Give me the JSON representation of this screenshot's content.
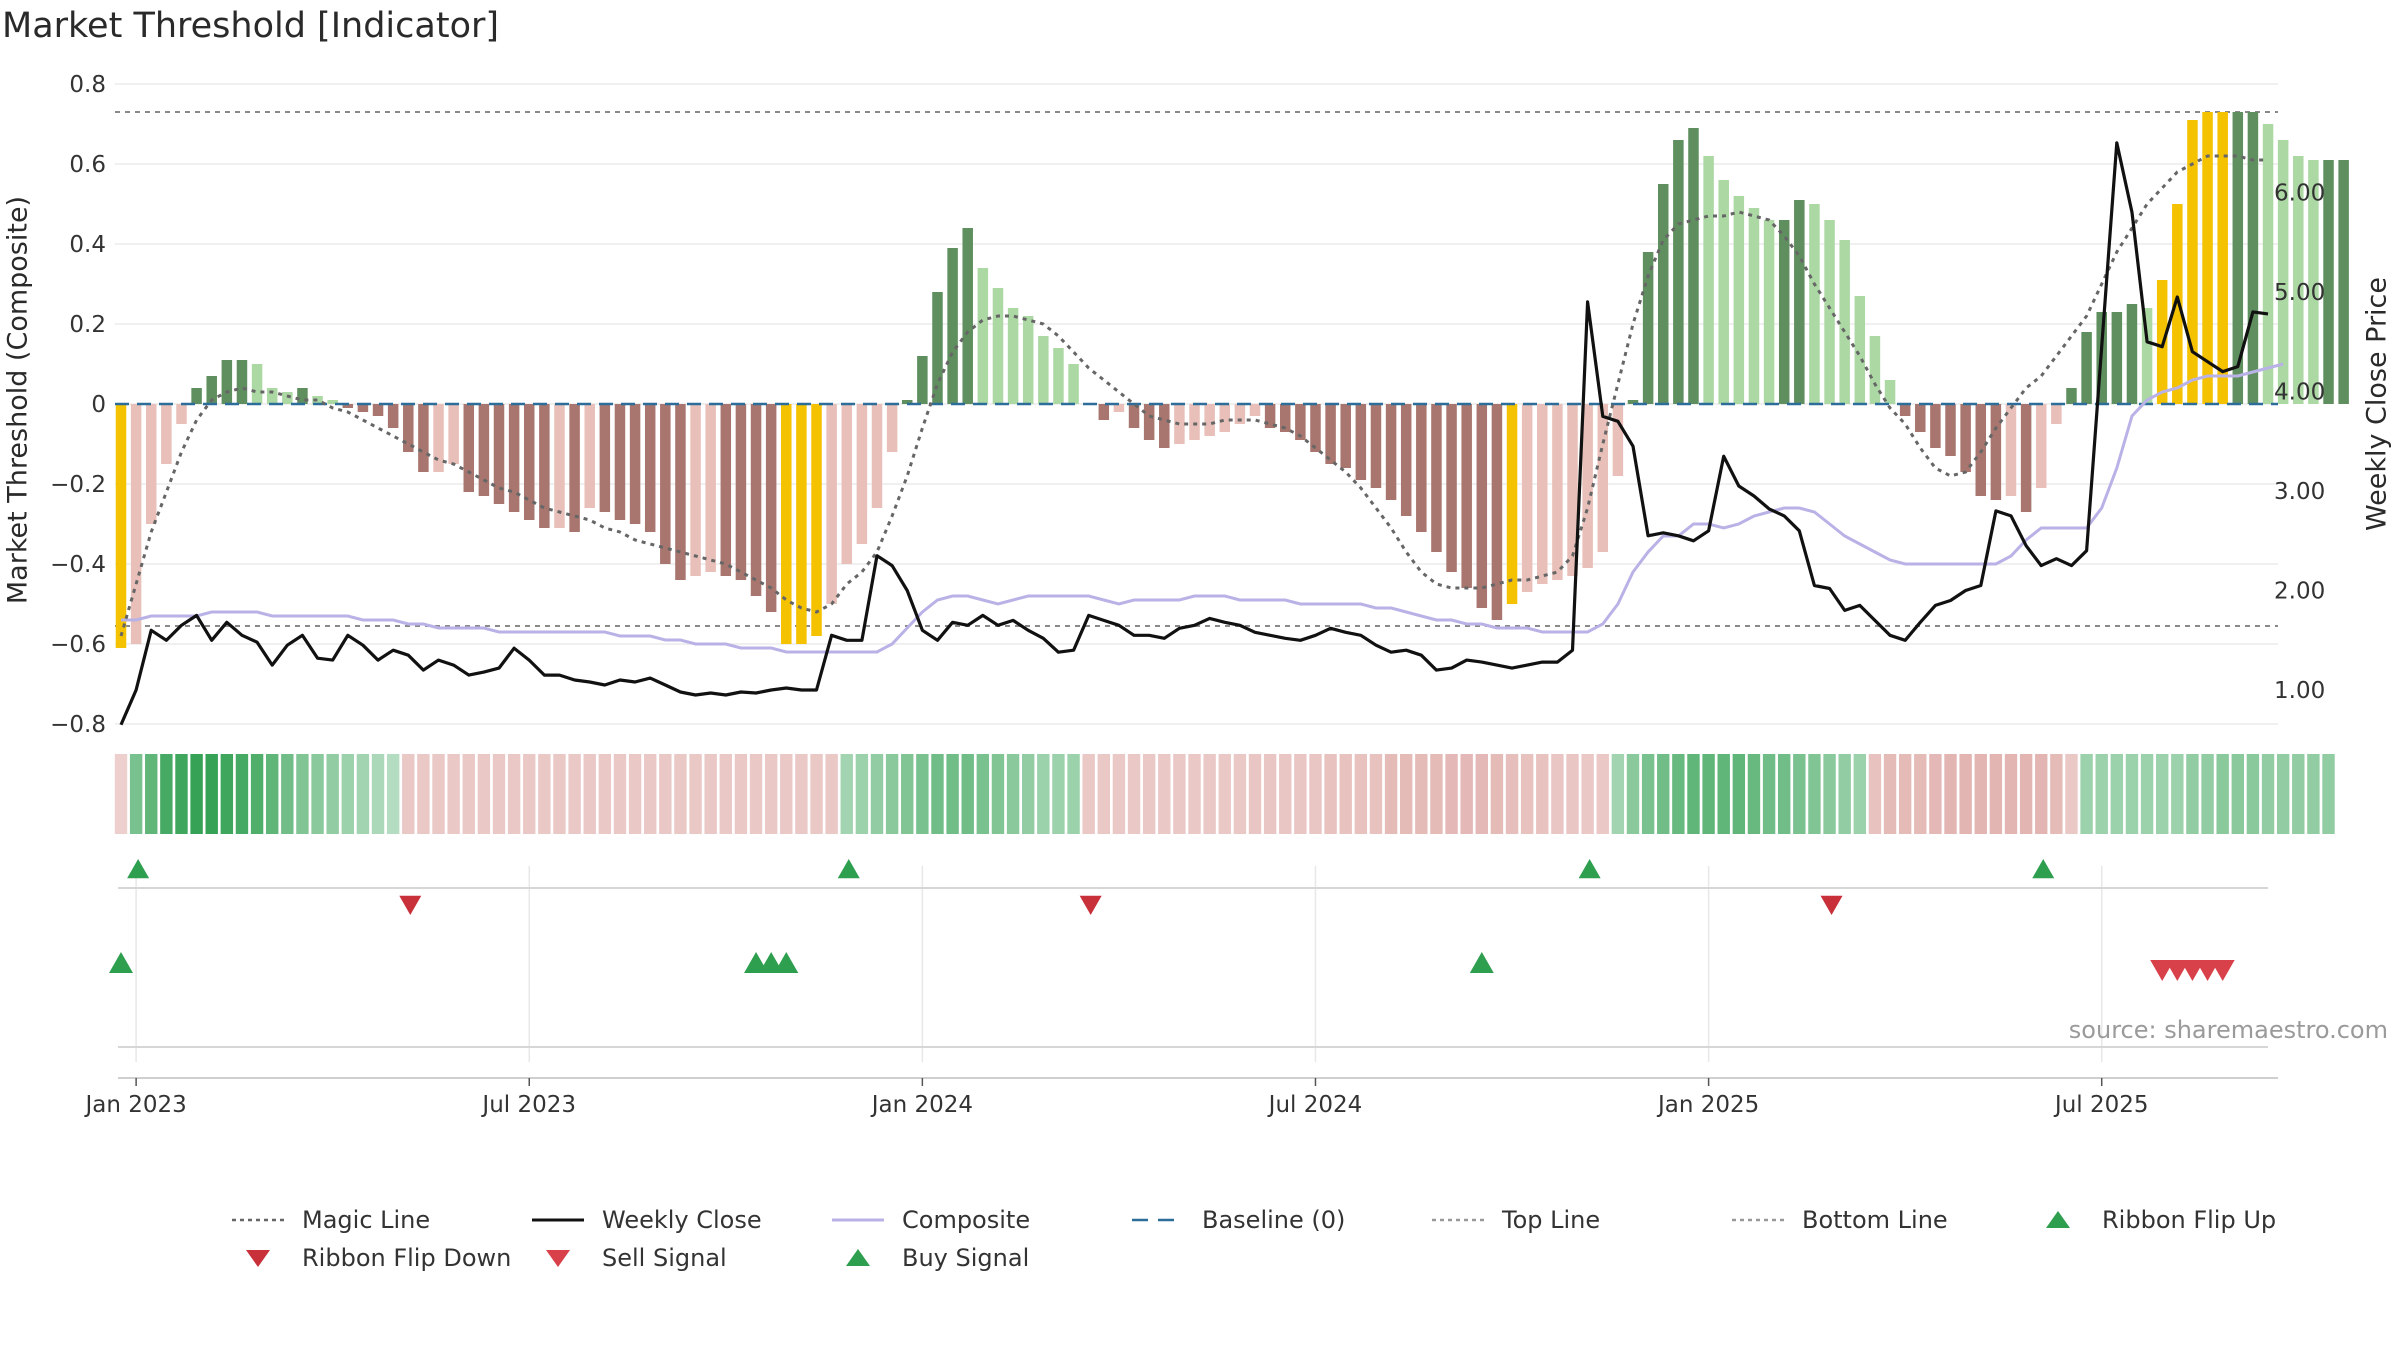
{
  "title": "Market Threshold [Indicator]",
  "source": "source: sharemaestro.com",
  "colors": {
    "strong_pos": "#5f8f5f",
    "weak_pos": "#acd8a4",
    "strong_neg": "#a8766f",
    "weak_neg": "#e8c0b9",
    "extreme": "#f5c200",
    "weekly_close": "#111111",
    "composite": "#b9b2e6",
    "magic": "#666666",
    "baseline": "#2c6e99",
    "buy": "#2e9e4f",
    "sell": "#d9414a"
  },
  "legend": [
    {
      "label": "Magic Line",
      "style": "dotted",
      "color": "#666666"
    },
    {
      "label": "Weekly Close",
      "style": "solid",
      "color": "#111111"
    },
    {
      "label": "Composite",
      "style": "solid",
      "color": "#b9b2e6"
    },
    {
      "label": "Baseline (0)",
      "style": "dashed",
      "color": "#2c6e99"
    },
    {
      "label": "Top Line",
      "style": "dotted",
      "color": "#999999"
    },
    {
      "label": "Bottom Line",
      "style": "dotted",
      "color": "#999999"
    },
    {
      "label": "Ribbon Flip Up",
      "style": "triangle-up",
      "color": "#2e9e4f"
    },
    {
      "label": "Ribbon Flip Down",
      "style": "triangle-down",
      "color": "#c8303a"
    },
    {
      "label": "Sell Signal",
      "style": "triangle-down",
      "color": "#d9414a"
    },
    {
      "label": "Buy Signal",
      "style": "triangle-up",
      "color": "#2e9e4f"
    }
  ],
  "chart_data": {
    "type": "bar",
    "ylabel": "Market Threshold (Composite)",
    "y2label": "Weekly Close Price",
    "ylim": [
      -0.8,
      0.8
    ],
    "y2lim": [
      0.8,
      6.6
    ],
    "yticks": [
      0.8,
      0.6,
      0.4,
      0.2,
      0,
      -0.2,
      -0.4,
      -0.6,
      -0.8
    ],
    "ytick_labels": [
      "0.8",
      "0.6",
      "0.4",
      "0.2",
      "0",
      "−0.2",
      "−0.4",
      "−0.6",
      "−0.8"
    ],
    "y2ticks": [
      6.0,
      5.0,
      4.0,
      3.0,
      2.0,
      1.0
    ],
    "y2tick_labels": [
      "6.00",
      "5.00",
      "4.00",
      "3.00",
      "2.00",
      "1.00"
    ],
    "xticks": [
      {
        "label": "Jan 2023",
        "week": 1
      },
      {
        "label": "Jul 2023",
        "week": 27
      },
      {
        "label": "Jan 2024",
        "week": 53
      },
      {
        "label": "Jul 2024",
        "week": 79
      },
      {
        "label": "Jan 2025",
        "week": 105
      },
      {
        "label": "Jul 2025",
        "week": 131
      }
    ],
    "top_line": 0.73,
    "bottom_line": -0.555,
    "baseline": 0,
    "composite_bars": [
      -0.61,
      -0.6,
      -0.3,
      -0.15,
      -0.05,
      0.04,
      0.07,
      0.11,
      0.11,
      0.1,
      0.04,
      0.03,
      0.04,
      0.02,
      0.01,
      -0.01,
      -0.02,
      -0.03,
      -0.06,
      -0.12,
      -0.17,
      -0.17,
      -0.15,
      -0.22,
      -0.23,
      -0.25,
      -0.27,
      -0.29,
      -0.31,
      -0.31,
      -0.32,
      -0.26,
      -0.27,
      -0.29,
      -0.3,
      -0.32,
      -0.4,
      -0.44,
      -0.43,
      -0.42,
      -0.43,
      -0.44,
      -0.48,
      -0.52,
      -0.6,
      -0.6,
      -0.58,
      -0.5,
      -0.4,
      -0.35,
      -0.26,
      -0.12,
      0.01,
      0.12,
      0.28,
      0.39,
      0.44,
      0.34,
      0.29,
      0.24,
      0.22,
      0.17,
      0.14,
      0.1,
      0,
      -0.04,
      -0.02,
      -0.06,
      -0.09,
      -0.11,
      -0.1,
      -0.09,
      -0.08,
      -0.07,
      -0.05,
      -0.03,
      -0.06,
      -0.07,
      -0.09,
      -0.12,
      -0.15,
      -0.16,
      -0.19,
      -0.21,
      -0.24,
      -0.28,
      -0.32,
      -0.37,
      -0.42,
      -0.46,
      -0.51,
      -0.54,
      -0.5,
      -0.47,
      -0.45,
      -0.44,
      -0.43,
      -0.41,
      -0.37,
      -0.18,
      0.01,
      0.38,
      0.55,
      0.66,
      0.69,
      0.62,
      0.56,
      0.52,
      0.49,
      0.46,
      0.46,
      0.51,
      0.5,
      0.46,
      0.41,
      0.27,
      0.17,
      0.06,
      -0.03,
      -0.07,
      -0.11,
      -0.13,
      -0.17,
      -0.23,
      -0.24,
      -0.23,
      -0.27,
      -0.21,
      -0.05,
      0.04,
      0.18,
      0.23,
      0.23,
      0.25,
      0.24,
      0.31,
      0.5,
      0.71,
      0.73,
      0.73,
      0.73,
      0.73,
      0.7,
      0.66,
      0.62,
      0.61,
      0.61,
      0.61
    ],
    "extreme_bars": [
      0,
      44,
      45,
      46,
      92,
      135,
      136,
      137,
      138,
      139
    ],
    "weekly_close": [
      0.65,
      1.0,
      1.6,
      1.5,
      1.65,
      1.75,
      1.5,
      1.68,
      1.55,
      1.48,
      1.25,
      1.45,
      1.55,
      1.32,
      1.3,
      1.55,
      1.45,
      1.3,
      1.4,
      1.35,
      1.2,
      1.3,
      1.25,
      1.15,
      1.18,
      1.22,
      1.42,
      1.3,
      1.15,
      1.15,
      1.1,
      1.08,
      1.05,
      1.1,
      1.08,
      1.12,
      1.05,
      0.98,
      0.95,
      0.97,
      0.95,
      0.98,
      0.97,
      1.0,
      1.02,
      1.0,
      1.0,
      1.55,
      1.5,
      1.5,
      2.35,
      2.25,
      2.0,
      1.6,
      1.5,
      1.68,
      1.65,
      1.75,
      1.65,
      1.7,
      1.6,
      1.52,
      1.38,
      1.4,
      1.75,
      1.7,
      1.65,
      1.55,
      1.55,
      1.52,
      1.62,
      1.65,
      1.72,
      1.68,
      1.65,
      1.58,
      1.55,
      1.52,
      1.5,
      1.55,
      1.62,
      1.58,
      1.55,
      1.45,
      1.38,
      1.4,
      1.35,
      1.2,
      1.22,
      1.3,
      1.28,
      1.25,
      1.22,
      1.25,
      1.28,
      1.28,
      1.4,
      4.9,
      3.75,
      3.7,
      3.45,
      2.55,
      2.58,
      2.55,
      2.5,
      2.6,
      3.35,
      3.05,
      2.95,
      2.82,
      2.75,
      2.6,
      2.05,
      2.02,
      1.8,
      1.85,
      1.7,
      1.55,
      1.5,
      1.68,
      1.85,
      1.9,
      2.0,
      2.05,
      2.8,
      2.75,
      2.45,
      2.25,
      2.32,
      2.25,
      2.4,
      4.45,
      6.5,
      5.8,
      4.5,
      4.45,
      4.95,
      4.4,
      4.3,
      4.2,
      4.25,
      4.8,
      4.78
    ],
    "composite_line": [
      -0.54,
      -0.54,
      -0.53,
      -0.53,
      -0.53,
      -0.53,
      -0.52,
      -0.52,
      -0.52,
      -0.52,
      -0.53,
      -0.53,
      -0.53,
      -0.53,
      -0.53,
      -0.53,
      -0.54,
      -0.54,
      -0.54,
      -0.55,
      -0.55,
      -0.56,
      -0.56,
      -0.56,
      -0.56,
      -0.57,
      -0.57,
      -0.57,
      -0.57,
      -0.57,
      -0.57,
      -0.57,
      -0.57,
      -0.58,
      -0.58,
      -0.58,
      -0.59,
      -0.59,
      -0.6,
      -0.6,
      -0.6,
      -0.61,
      -0.61,
      -0.61,
      -0.62,
      -0.62,
      -0.62,
      -0.62,
      -0.62,
      -0.62,
      -0.62,
      -0.6,
      -0.56,
      -0.52,
      -0.49,
      -0.48,
      -0.48,
      -0.49,
      -0.5,
      -0.49,
      -0.48,
      -0.48,
      -0.48,
      -0.48,
      -0.48,
      -0.49,
      -0.5,
      -0.49,
      -0.49,
      -0.49,
      -0.49,
      -0.48,
      -0.48,
      -0.48,
      -0.49,
      -0.49,
      -0.49,
      -0.49,
      -0.5,
      -0.5,
      -0.5,
      -0.5,
      -0.5,
      -0.51,
      -0.51,
      -0.52,
      -0.53,
      -0.54,
      -0.54,
      -0.55,
      -0.55,
      -0.56,
      -0.56,
      -0.56,
      -0.57,
      -0.57,
      -0.57,
      -0.57,
      -0.55,
      -0.5,
      -0.42,
      -0.37,
      -0.33,
      -0.33,
      -0.3,
      -0.3,
      -0.31,
      -0.3,
      -0.28,
      -0.27,
      -0.26,
      -0.26,
      -0.27,
      -0.3,
      -0.33,
      -0.35,
      -0.37,
      -0.39,
      -0.4,
      -0.4,
      -0.4,
      -0.4,
      -0.4,
      -0.4,
      -0.4,
      -0.38,
      -0.34,
      -0.31,
      -0.31,
      -0.31,
      -0.31,
      -0.26,
      -0.16,
      -0.03,
      0.01,
      0.03,
      0.04,
      0.06,
      0.07,
      0.07,
      0.07,
      0.08,
      0.09,
      0.1
    ],
    "magic_line": [
      -0.58,
      -0.45,
      -0.32,
      -0.22,
      -0.12,
      -0.04,
      0.01,
      0.03,
      0.04,
      0.03,
      0.03,
      0.02,
      0.01,
      0.01,
      -0.01,
      -0.02,
      -0.04,
      -0.06,
      -0.08,
      -0.1,
      -0.12,
      -0.14,
      -0.15,
      -0.17,
      -0.19,
      -0.21,
      -0.22,
      -0.24,
      -0.26,
      -0.27,
      -0.28,
      -0.29,
      -0.31,
      -0.32,
      -0.34,
      -0.35,
      -0.36,
      -0.37,
      -0.38,
      -0.39,
      -0.4,
      -0.42,
      -0.44,
      -0.46,
      -0.49,
      -0.51,
      -0.52,
      -0.5,
      -0.45,
      -0.42,
      -0.37,
      -0.28,
      -0.18,
      -0.06,
      0.05,
      0.13,
      0.18,
      0.21,
      0.22,
      0.22,
      0.21,
      0.2,
      0.17,
      0.13,
      0.09,
      0.06,
      0.03,
      0.0,
      -0.03,
      -0.04,
      -0.05,
      -0.05,
      -0.05,
      -0.04,
      -0.04,
      -0.04,
      -0.05,
      -0.06,
      -0.08,
      -0.11,
      -0.14,
      -0.17,
      -0.21,
      -0.26,
      -0.31,
      -0.37,
      -0.42,
      -0.45,
      -0.46,
      -0.46,
      -0.46,
      -0.45,
      -0.44,
      -0.44,
      -0.43,
      -0.42,
      -0.38,
      -0.26,
      -0.1,
      0.05,
      0.2,
      0.32,
      0.41,
      0.45,
      0.46,
      0.47,
      0.47,
      0.48,
      0.47,
      0.46,
      0.42,
      0.37,
      0.3,
      0.24,
      0.18,
      0.12,
      0.05,
      -0.01,
      -0.05,
      -0.11,
      -0.16,
      -0.18,
      -0.17,
      -0.12,
      -0.06,
      -0.01,
      0.04,
      0.07,
      0.12,
      0.17,
      0.22,
      0.3,
      0.38,
      0.44,
      0.5,
      0.54,
      0.58,
      0.6,
      0.62,
      0.62,
      0.62,
      0.61,
      0.61
    ],
    "ribbon": [
      -0.15,
      0.55,
      0.7,
      0.85,
      0.9,
      0.95,
      0.95,
      0.9,
      0.85,
      0.8,
      0.7,
      0.6,
      0.5,
      0.45,
      0.4,
      0.35,
      0.3,
      0.25,
      0.2,
      -0.2,
      -0.2,
      -0.2,
      -0.2,
      -0.2,
      -0.2,
      -0.2,
      -0.2,
      -0.2,
      -0.2,
      -0.2,
      -0.2,
      -0.2,
      -0.2,
      -0.2,
      -0.2,
      -0.2,
      -0.2,
      -0.2,
      -0.2,
      -0.2,
      -0.2,
      -0.2,
      -0.2,
      -0.2,
      -0.2,
      -0.2,
      -0.2,
      -0.2,
      0.3,
      0.35,
      0.4,
      0.45,
      0.5,
      0.55,
      0.6,
      0.6,
      0.6,
      0.55,
      0.5,
      0.45,
      0.4,
      0.35,
      0.35,
      0.35,
      -0.2,
      -0.2,
      -0.2,
      -0.2,
      -0.2,
      -0.2,
      -0.2,
      -0.2,
      -0.2,
      -0.2,
      -0.2,
      -0.22,
      -0.22,
      -0.22,
      -0.22,
      -0.22,
      -0.25,
      -0.25,
      -0.25,
      -0.25,
      -0.3,
      -0.3,
      -0.3,
      -0.3,
      -0.32,
      -0.32,
      -0.32,
      -0.3,
      -0.28,
      -0.25,
      -0.25,
      -0.22,
      -0.22,
      -0.2,
      -0.2,
      0.3,
      0.45,
      0.55,
      0.6,
      0.65,
      0.7,
      0.7,
      0.7,
      0.7,
      0.65,
      0.6,
      0.6,
      0.55,
      0.5,
      0.45,
      0.4,
      0.35,
      -0.25,
      -0.3,
      -0.3,
      -0.3,
      -0.32,
      -0.35,
      -0.35,
      -0.35,
      -0.35,
      -0.35,
      -0.35,
      -0.35,
      -0.3,
      -0.2,
      0.35,
      0.35,
      0.35,
      0.35,
      0.35,
      0.35,
      0.35,
      0.4,
      0.4,
      0.45,
      0.45,
      0.45,
      0.4,
      0.4,
      0.4,
      0.4,
      0.4
    ],
    "ribbon_flip_up": [
      1,
      48,
      97,
      127
    ],
    "ribbon_flip_down": [
      19,
      64,
      113
    ],
    "buy_signal": [
      0,
      42,
      43,
      44,
      90
    ],
    "sell_signal": [
      135,
      136,
      137,
      138,
      139
    ]
  }
}
